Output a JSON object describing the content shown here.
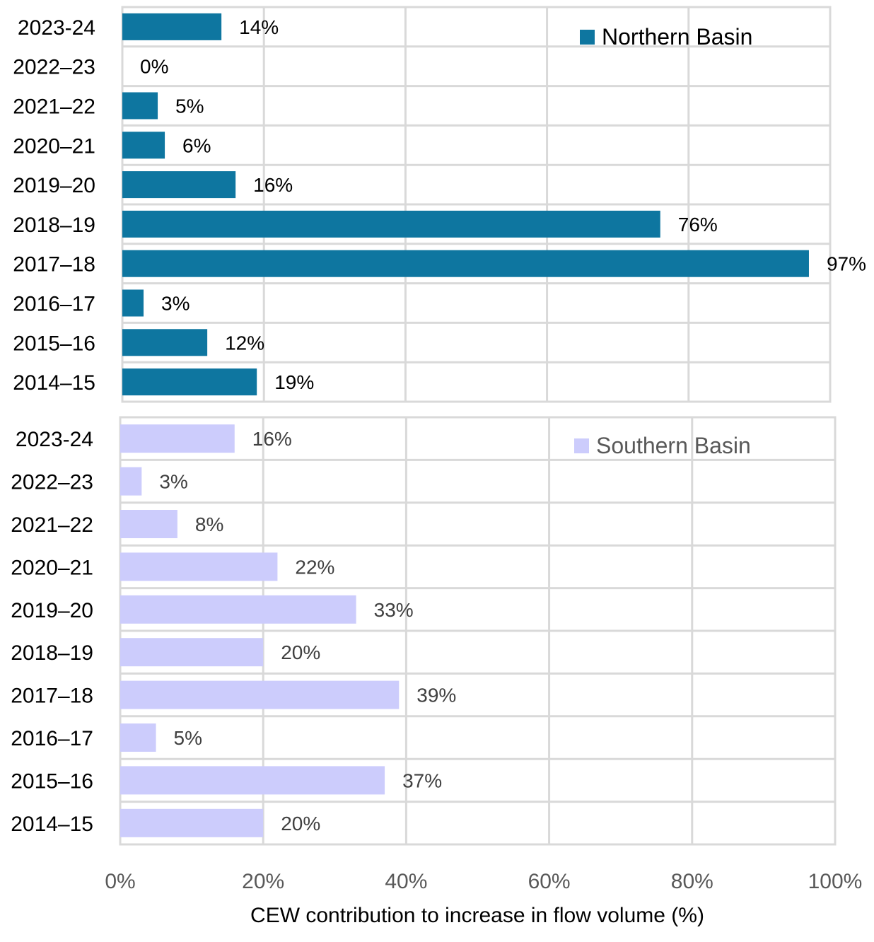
{
  "chart_data": {
    "type": "bar",
    "orientation": "horizontal",
    "xlabel": "CEW contribution to increase in flow volume (%)",
    "xlim": [
      0,
      100
    ],
    "x_ticks": [
      "0%",
      "20%",
      "40%",
      "60%",
      "80%",
      "100%"
    ],
    "grid": true,
    "panels": [
      {
        "name": "Northern Basin",
        "color": "#0E76A0",
        "legend_position": "top-right",
        "categories": [
          "2023-24",
          "2022–23",
          "2021–22",
          "2020–21",
          "2019–20",
          "2018–19",
          "2017–18",
          "2016–17",
          "2015–16",
          "2014–15"
        ],
        "values": [
          14,
          0,
          5,
          6,
          16,
          76,
          97,
          3,
          12,
          19
        ],
        "labels": [
          "14%",
          "0%",
          "5%",
          "6%",
          "16%",
          "76%",
          "97%",
          "3%",
          "12%",
          "19%"
        ]
      },
      {
        "name": "Southern Basin",
        "color": "#CCCCFC",
        "legend_position": "top-right",
        "categories": [
          "2023-24",
          "2022–23",
          "2021–22",
          "2020–21",
          "2019–20",
          "2018–19",
          "2017–18",
          "2016–17",
          "2015–16",
          "2014–15"
        ],
        "values": [
          16,
          3,
          8,
          22,
          33,
          20,
          39,
          5,
          37,
          20
        ],
        "labels": [
          "16%",
          "3%",
          "8%",
          "22%",
          "33%",
          "20%",
          "39%",
          "5%",
          "37%",
          "20%"
        ]
      }
    ]
  }
}
